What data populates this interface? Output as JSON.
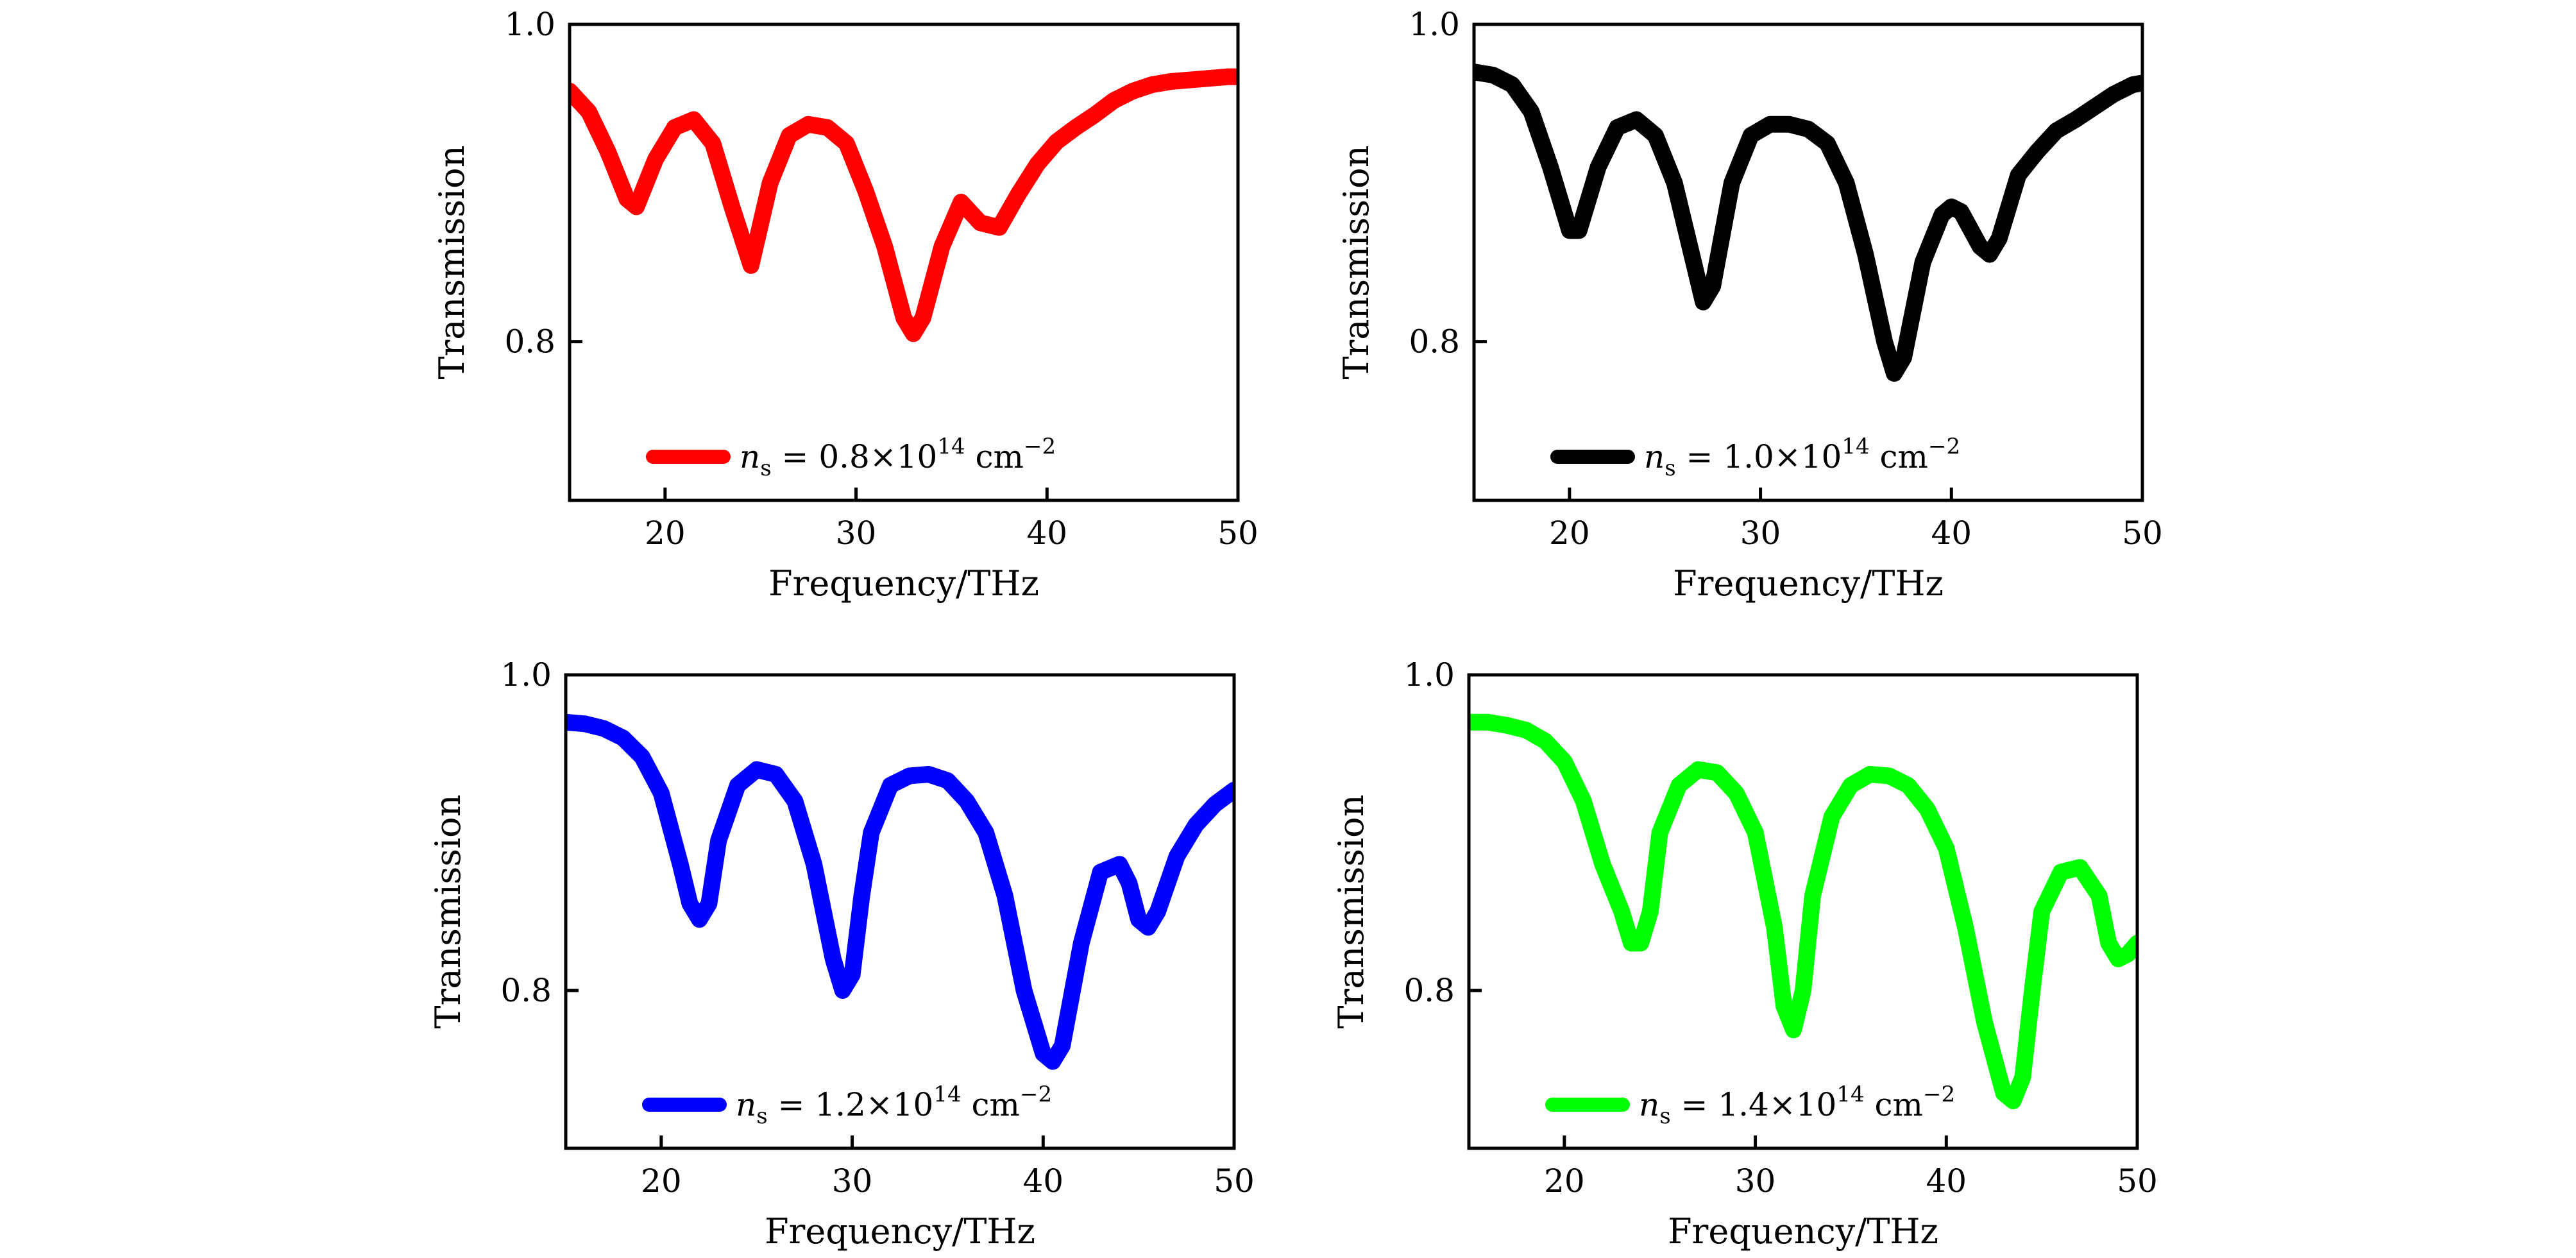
{
  "chart_data": [
    {
      "type": "line",
      "xlabel": "Frequency/THz",
      "ylabel": "Transmission",
      "xlim": [
        15,
        50
      ],
      "ylim": [
        0.7,
        1.0
      ],
      "xticks": [
        20,
        30,
        40,
        50
      ],
      "yticks": [
        0.8,
        1.0
      ],
      "xtick_labels": [
        "20",
        "30",
        "40",
        "50"
      ],
      "ytick_labels": [
        "0.8",
        "1.0"
      ],
      "grid": false,
      "legend_position": "bottom-center",
      "series": [
        {
          "name": "n_s = 0.8×10^14 cm^-2",
          "legend": {
            "var": "n",
            "sub": "s",
            "eq": " = 0.8×10",
            "exp": "14",
            "unit": " cm",
            "unit_exp": "−2"
          },
          "color": "#ff0000",
          "x": [
            15,
            16,
            17,
            18,
            18.5,
            19.5,
            20.5,
            21.5,
            22.5,
            23.5,
            24.5,
            25.5,
            26.5,
            27.5,
            28.5,
            29.5,
            30.5,
            31.5,
            32.5,
            33,
            33.5,
            34.5,
            35.5,
            36.5,
            37.5,
            38.5,
            39.5,
            40.5,
            41.5,
            42.5,
            43.5,
            44.5,
            45.5,
            46.5,
            47.5,
            48.5,
            49.5,
            50
          ],
          "y": [
            0.958,
            0.945,
            0.92,
            0.89,
            0.885,
            0.915,
            0.935,
            0.94,
            0.925,
            0.885,
            0.848,
            0.9,
            0.93,
            0.937,
            0.935,
            0.925,
            0.895,
            0.86,
            0.815,
            0.805,
            0.815,
            0.86,
            0.888,
            0.875,
            0.872,
            0.893,
            0.912,
            0.926,
            0.935,
            0.943,
            0.952,
            0.958,
            0.962,
            0.964,
            0.965,
            0.966,
            0.967,
            0.967
          ]
        },
        {
          "name": "n_s = 1.0×10^14 cm^-2",
          "legend": {
            "var": "n",
            "sub": "s",
            "eq": " = 1.0×10",
            "exp": "14",
            "unit": " cm",
            "unit_exp": "−2"
          },
          "color": "#000000",
          "x": [
            15,
            16,
            17,
            18,
            19,
            20,
            20.5,
            21.5,
            22.5,
            23.5,
            24.5,
            25.5,
            26.5,
            27,
            27.5,
            28.5,
            29.5,
            30.5,
            31.5,
            32.5,
            33.5,
            34.5,
            35.5,
            36.5,
            37,
            37.5,
            38.5,
            39.5,
            40,
            40.5,
            41.5,
            42,
            42.5,
            43.5,
            44.5,
            45.5,
            46.5,
            47.5,
            48.5,
            49.5,
            50
          ],
          "y": [
            0.97,
            0.968,
            0.962,
            0.945,
            0.91,
            0.87,
            0.87,
            0.91,
            0.935,
            0.94,
            0.93,
            0.9,
            0.85,
            0.825,
            0.835,
            0.9,
            0.93,
            0.937,
            0.937,
            0.934,
            0.925,
            0.9,
            0.855,
            0.8,
            0.78,
            0.79,
            0.85,
            0.88,
            0.885,
            0.882,
            0.86,
            0.855,
            0.865,
            0.905,
            0.92,
            0.933,
            0.94,
            0.948,
            0.956,
            0.962,
            0.963
          ]
        },
        {
          "name": "n_s = 1.2×10^14 cm^-2",
          "legend": {
            "var": "n",
            "sub": "s",
            "eq": " = 1.2×10",
            "exp": "14",
            "unit": " cm",
            "unit_exp": "−2"
          },
          "color": "#0000ff",
          "x": [
            15,
            16,
            17,
            18,
            19,
            20,
            21,
            21.5,
            22,
            22.5,
            23,
            24,
            25,
            26,
            27,
            28,
            29,
            29.5,
            30,
            30.5,
            31,
            32,
            33,
            34,
            35,
            36,
            37,
            38,
            39,
            40,
            40.5,
            41,
            42,
            43,
            44,
            44.5,
            45,
            45.5,
            46,
            47,
            48,
            49,
            50
          ],
          "y": [
            0.97,
            0.969,
            0.966,
            0.96,
            0.948,
            0.925,
            0.88,
            0.855,
            0.845,
            0.855,
            0.895,
            0.93,
            0.94,
            0.937,
            0.92,
            0.88,
            0.82,
            0.8,
            0.81,
            0.86,
            0.9,
            0.93,
            0.936,
            0.937,
            0.933,
            0.92,
            0.9,
            0.86,
            0.8,
            0.76,
            0.755,
            0.765,
            0.83,
            0.875,
            0.88,
            0.868,
            0.845,
            0.84,
            0.85,
            0.885,
            0.905,
            0.918,
            0.927
          ]
        },
        {
          "name": "n_s = 1.4×10^14 cm^-2",
          "legend": {
            "var": "n",
            "sub": "s",
            "eq": " = 1.4×10",
            "exp": "14",
            "unit": " cm",
            "unit_exp": "−2"
          },
          "color": "#00ff00",
          "x": [
            15,
            16,
            17,
            18,
            19,
            20,
            21,
            22,
            23,
            23.5,
            24,
            24.5,
            25,
            26,
            27,
            28,
            29,
            30,
            31,
            31.5,
            32,
            32.5,
            33,
            34,
            35,
            36,
            37,
            38,
            39,
            40,
            41,
            42,
            43,
            43.5,
            44,
            44.5,
            45,
            46,
            47,
            48,
            48.5,
            49,
            49.5,
            50
          ],
          "y": [
            0.97,
            0.97,
            0.968,
            0.965,
            0.958,
            0.945,
            0.92,
            0.88,
            0.85,
            0.83,
            0.83,
            0.85,
            0.9,
            0.93,
            0.94,
            0.938,
            0.925,
            0.9,
            0.84,
            0.79,
            0.775,
            0.8,
            0.86,
            0.91,
            0.93,
            0.937,
            0.936,
            0.93,
            0.915,
            0.89,
            0.84,
            0.78,
            0.735,
            0.73,
            0.745,
            0.8,
            0.85,
            0.875,
            0.878,
            0.86,
            0.83,
            0.82,
            0.823,
            0.83
          ]
        }
      ]
    }
  ]
}
